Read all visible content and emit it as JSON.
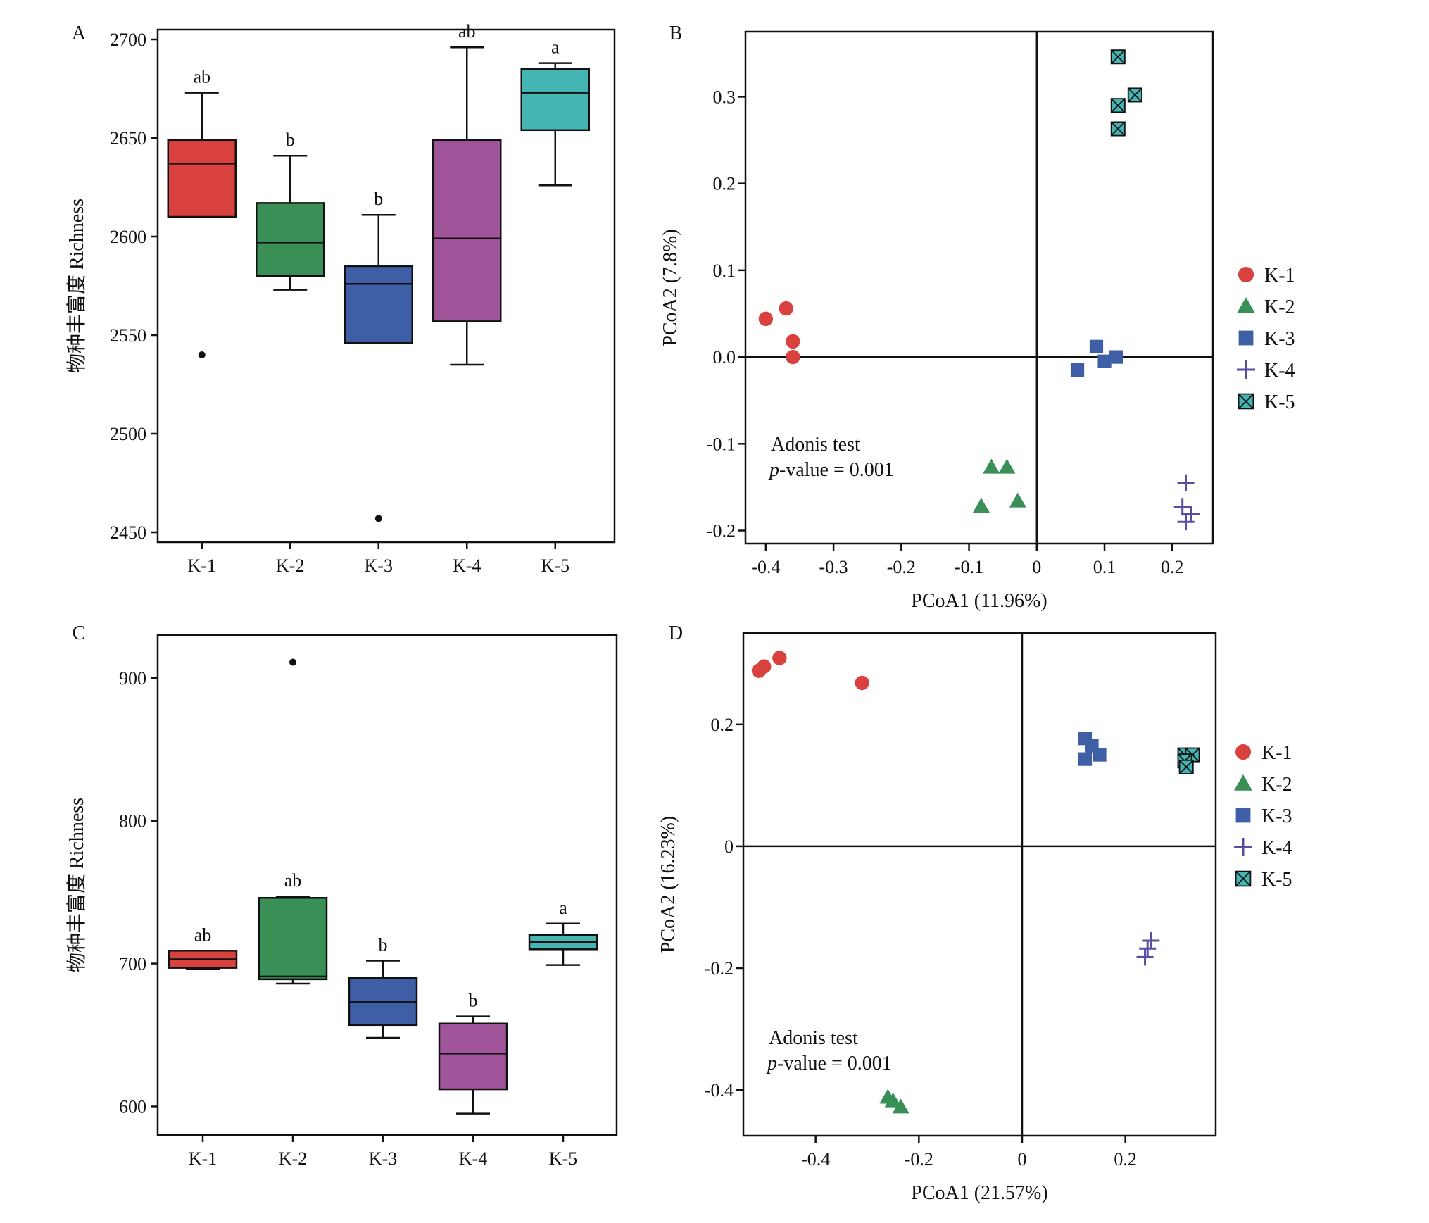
{
  "colors": {
    "K-1": "#d9413f",
    "K-2": "#3a8f57",
    "K-3": "#3e5fa6",
    "K-4": "#a0559a",
    "K-5": "#45b5b3",
    "K-4_scatter": "#5a4ca0",
    "K-5_scatter": "#45b5b3"
  },
  "chart_data": [
    {
      "panel": "A",
      "type": "box",
      "panel_label": "A",
      "title": "",
      "xlabel": "",
      "ylabel": "物种丰富度 Richness",
      "ylim": [
        2445,
        2705
      ],
      "yticks": [
        2450,
        2500,
        2550,
        2600,
        2650,
        2700
      ],
      "categories": [
        "K-1",
        "K-2",
        "K-3",
        "K-4",
        "K-5"
      ],
      "boxes": [
        {
          "name": "K-1",
          "whisker_low": 2610,
          "q1": 2610,
          "median": 2637,
          "q3": 2649,
          "whisker_high": 2673,
          "outliers": [
            2540
          ],
          "letter": "ab"
        },
        {
          "name": "K-2",
          "whisker_low": 2573,
          "q1": 2580,
          "median": 2597,
          "q3": 2617,
          "whisker_high": 2641,
          "outliers": [],
          "letter": "b"
        },
        {
          "name": "K-3",
          "whisker_low": 2546,
          "q1": 2546,
          "median": 2576,
          "q3": 2585,
          "whisker_high": 2611,
          "outliers": [
            2457
          ],
          "letter": "b"
        },
        {
          "name": "K-4",
          "whisker_low": 2535,
          "q1": 2557,
          "median": 2599,
          "q3": 2649,
          "whisker_high": 2696,
          "outliers": [],
          "letter": "ab"
        },
        {
          "name": "K-5",
          "whisker_low": 2626,
          "q1": 2654,
          "median": 2673,
          "q3": 2685,
          "whisker_high": 2688,
          "outliers": [],
          "letter": "a"
        }
      ]
    },
    {
      "panel": "B",
      "type": "scatter",
      "panel_label": "B",
      "title": "",
      "xlabel": "PCoA1 (11.96%)",
      "ylabel": "PCoA2 (7.8%)",
      "xlim": [
        -0.43,
        0.26
      ],
      "ylim": [
        -0.215,
        0.375
      ],
      "xticks": [
        -0.4,
        -0.3,
        -0.2,
        -0.1,
        0,
        0.1,
        0.2
      ],
      "xtick_labels": [
        "-0.4",
        "-0.3",
        "-0.2",
        "-0.1",
        "0",
        "0.1",
        "0.2"
      ],
      "yticks": [
        -0.2,
        -0.1,
        0.0,
        0.1,
        0.2,
        0.3
      ],
      "ytick_labels": [
        "-0.2",
        "-0.1",
        "0.0",
        "0.1",
        "0.2",
        "0.3"
      ],
      "legend": {
        "position": "right",
        "entries": [
          "K-1",
          "K-2",
          "K-3",
          "K-4",
          "K-5"
        ]
      },
      "annotation": {
        "line1": "Adonis test",
        "line2_italic": "p",
        "line2_rest": "-value = 0.001"
      },
      "series": [
        {
          "name": "K-1",
          "marker": "circle",
          "points": [
            [
              -0.4,
              0.044
            ],
            [
              -0.37,
              0.056
            ],
            [
              -0.36,
              0.018
            ],
            [
              -0.36,
              0.0
            ]
          ]
        },
        {
          "name": "K-2",
          "marker": "triangle",
          "points": [
            [
              -0.067,
              -0.127
            ],
            [
              -0.044,
              -0.127
            ],
            [
              -0.082,
              -0.172
            ],
            [
              -0.028,
              -0.166
            ]
          ]
        },
        {
          "name": "K-3",
          "marker": "square",
          "points": [
            [
              0.06,
              -0.015
            ],
            [
              0.088,
              0.012
            ],
            [
              0.1,
              -0.005
            ],
            [
              0.117,
              0.0
            ]
          ]
        },
        {
          "name": "K-4",
          "marker": "plus",
          "points": [
            [
              0.22,
              -0.145
            ],
            [
              0.215,
              -0.173
            ],
            [
              0.228,
              -0.181
            ],
            [
              0.22,
              -0.19
            ]
          ]
        },
        {
          "name": "K-5",
          "marker": "boxx",
          "points": [
            [
              0.12,
              0.346
            ],
            [
              0.145,
              0.302
            ],
            [
              0.12,
              0.29
            ],
            [
              0.12,
              0.263
            ]
          ]
        }
      ]
    },
    {
      "panel": "C",
      "type": "box",
      "panel_label": "C",
      "title": "",
      "xlabel": "",
      "ylabel": "物种丰富度 Richness",
      "ylim": [
        580,
        930
      ],
      "yticks": [
        600,
        700,
        800,
        900
      ],
      "categories": [
        "K-1",
        "K-2",
        "K-3",
        "K-4",
        "K-5"
      ],
      "boxes": [
        {
          "name": "K-1",
          "whisker_low": 696,
          "q1": 697,
          "median": 703,
          "q3": 709,
          "whisker_high": 709,
          "outliers": [],
          "letter": "ab"
        },
        {
          "name": "K-2",
          "whisker_low": 686,
          "q1": 689,
          "median": 691,
          "q3": 746,
          "whisker_high": 747,
          "outliers": [
            911
          ],
          "letter": "ab"
        },
        {
          "name": "K-3",
          "whisker_low": 648,
          "q1": 657,
          "median": 673,
          "q3": 690,
          "whisker_high": 702,
          "outliers": [],
          "letter": "b"
        },
        {
          "name": "K-4",
          "whisker_low": 595,
          "q1": 612,
          "median": 637,
          "q3": 658,
          "whisker_high": 663,
          "outliers": [],
          "letter": "b"
        },
        {
          "name": "K-5",
          "whisker_low": 699,
          "q1": 710,
          "median": 715,
          "q3": 720,
          "whisker_high": 728,
          "outliers": [],
          "letter": "a"
        }
      ]
    },
    {
      "panel": "D",
      "type": "scatter",
      "panel_label": "D",
      "title": "",
      "xlabel": "PCoA1 (21.57%)",
      "ylabel": "PCoA2  (16.23%)",
      "xlim": [
        -0.54,
        0.375
      ],
      "ylim": [
        -0.475,
        0.35
      ],
      "xticks": [
        -0.4,
        -0.2,
        0,
        0.2
      ],
      "xtick_labels": [
        "-0.4",
        "-0.2",
        "0",
        "0.2"
      ],
      "yticks": [
        -0.4,
        -0.2,
        0,
        0.2
      ],
      "ytick_labels": [
        "-0.4",
        "-0.2",
        "0",
        "0.2"
      ],
      "legend": {
        "position": "right",
        "entries": [
          "K-1",
          "K-2",
          "K-3",
          "K-4",
          "K-5"
        ]
      },
      "annotation": {
        "line1": "Adonis test",
        "line2_italic": "p",
        "line2_rest": "-value = 0.001"
      },
      "series": [
        {
          "name": "K-1",
          "marker": "circle",
          "points": [
            [
              -0.51,
              0.288
            ],
            [
              -0.5,
              0.295
            ],
            [
              -0.47,
              0.309
            ],
            [
              -0.31,
              0.268
            ]
          ]
        },
        {
          "name": "K-2",
          "marker": "triangle",
          "points": [
            [
              -0.26,
              -0.412
            ],
            [
              -0.25,
              -0.418
            ],
            [
              -0.235,
              -0.428
            ]
          ]
        },
        {
          "name": "K-3",
          "marker": "square",
          "points": [
            [
              0.122,
              0.177
            ],
            [
              0.135,
              0.165
            ],
            [
              0.15,
              0.15
            ],
            [
              0.122,
              0.143
            ]
          ]
        },
        {
          "name": "K-4",
          "marker": "plus",
          "points": [
            [
              0.25,
              -0.155
            ],
            [
              0.243,
              -0.168
            ],
            [
              0.238,
              -0.182
            ]
          ]
        },
        {
          "name": "K-5",
          "marker": "boxx",
          "points": [
            [
              0.315,
              0.15
            ],
            [
              0.33,
              0.15
            ],
            [
              0.315,
              0.14
            ],
            [
              0.318,
              0.13
            ]
          ]
        }
      ]
    }
  ]
}
